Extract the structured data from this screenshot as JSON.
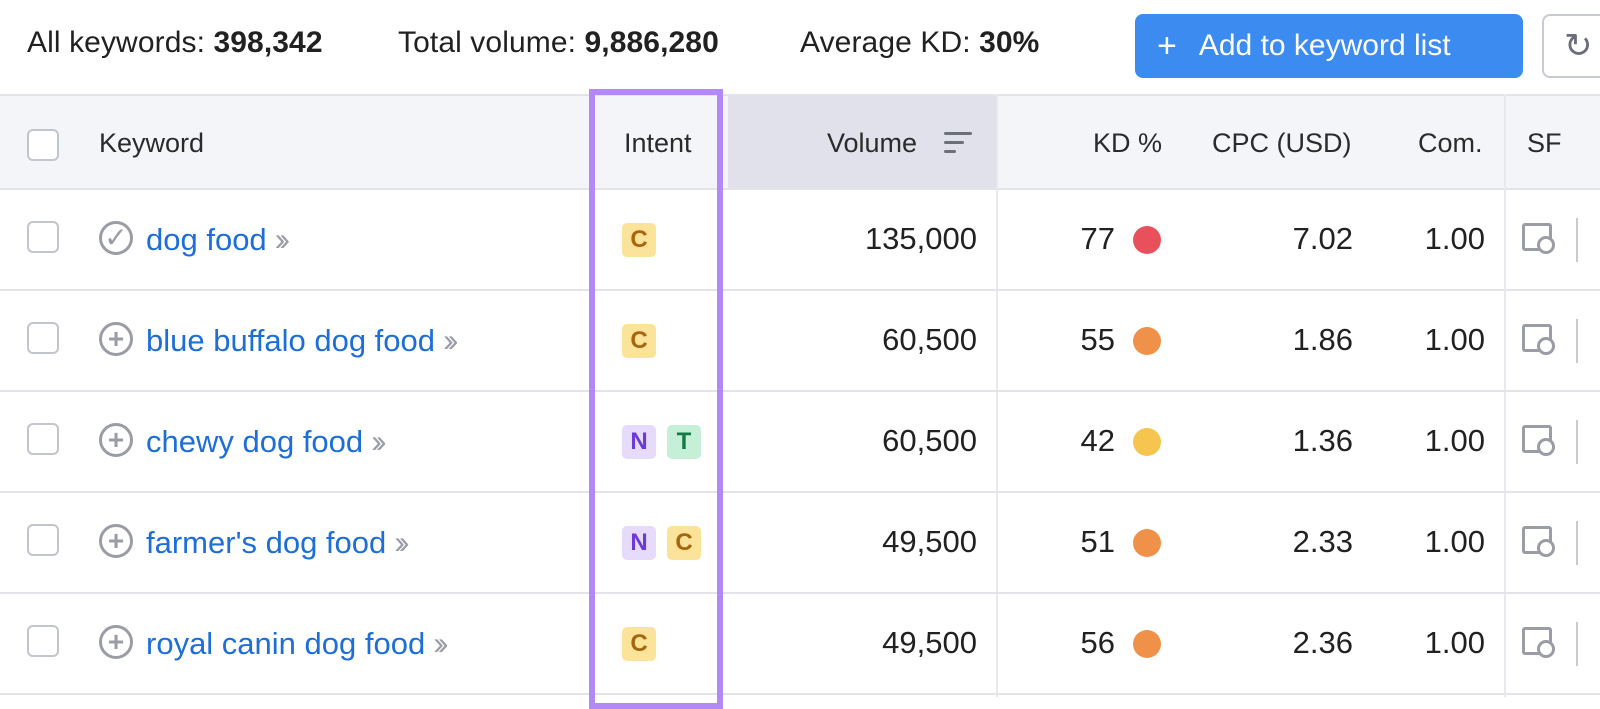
{
  "summary": {
    "all_keywords_label": "All keywords:",
    "all_keywords_value": "398,342",
    "total_volume_label": "Total volume:",
    "total_volume_value": "9,886,280",
    "average_kd_label": "Average KD:",
    "average_kd_value": "30%",
    "add_button_label": "Add to keyword list",
    "add_button_icon": "plus-icon",
    "refresh_icon": "refresh-icon"
  },
  "columns": {
    "keyword": "Keyword",
    "intent": "Intent",
    "volume": "Volume",
    "kd": "KD %",
    "cpc": "CPC (USD)",
    "com": "Com.",
    "sf": "SF"
  },
  "colors": {
    "accent": "#3b8bf0",
    "link": "#1d6ed8",
    "intent_highlight": "#b389f6",
    "kd_very_hard": "#e8505b",
    "kd_hard": "#f0914a",
    "kd_possible": "#f5c54f"
  },
  "rows": [
    {
      "keyword": "dog food",
      "added": true,
      "intents": [
        "C"
      ],
      "volume": "135,000",
      "kd": "77",
      "kd_color": "#e8505b",
      "cpc": "7.02",
      "com": "1.00"
    },
    {
      "keyword": "blue buffalo dog food",
      "added": false,
      "intents": [
        "C"
      ],
      "volume": "60,500",
      "kd": "55",
      "kd_color": "#f0914a",
      "cpc": "1.86",
      "com": "1.00"
    },
    {
      "keyword": "chewy dog food",
      "added": false,
      "intents": [
        "N",
        "T"
      ],
      "volume": "60,500",
      "kd": "42",
      "kd_color": "#f5c54f",
      "cpc": "1.36",
      "com": "1.00"
    },
    {
      "keyword": "farmer's dog food",
      "added": false,
      "intents": [
        "N",
        "C"
      ],
      "volume": "49,500",
      "kd": "51",
      "kd_color": "#f0914a",
      "cpc": "2.33",
      "com": "1.00"
    },
    {
      "keyword": "royal canin dog food",
      "added": false,
      "intents": [
        "C"
      ],
      "volume": "49,500",
      "kd": "56",
      "kd_color": "#f0914a",
      "cpc": "2.36",
      "com": "1.00"
    }
  ]
}
